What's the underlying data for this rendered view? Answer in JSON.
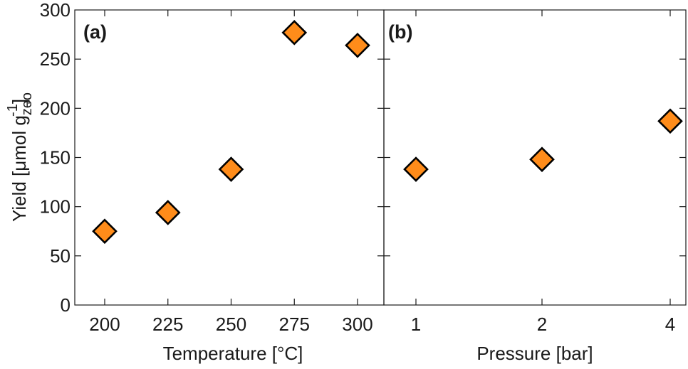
{
  "chart_data": [
    {
      "panel": "(a)",
      "type": "scatter",
      "xlabel": "Temperature [°C]",
      "ylabel_main": "Yield [μmol g",
      "ylabel_sub": "zeo",
      "ylabel_sup": "-1",
      "ylabel_end": "]",
      "x_ticks": [
        "200",
        "225",
        "250",
        "275",
        "300"
      ],
      "y_ticks": [
        "0",
        "50",
        "100",
        "150",
        "200",
        "250",
        "300"
      ],
      "ylim": [
        0,
        300
      ],
      "marker": "diamond",
      "marker_color": "#FF8C1A",
      "marker_edge": "#000000",
      "points": [
        {
          "x": 200,
          "y": 75
        },
        {
          "x": 225,
          "y": 94
        },
        {
          "x": 250,
          "y": 138
        },
        {
          "x": 275,
          "y": 277
        },
        {
          "x": 300,
          "y": 264
        }
      ]
    },
    {
      "panel": "(b)",
      "type": "scatter",
      "xlabel": "Pressure [bar]",
      "x_ticks": [
        "1",
        "2",
        "4"
      ],
      "ylim": [
        0,
        300
      ],
      "marker": "diamond",
      "marker_color": "#FF8C1A",
      "marker_edge": "#000000",
      "points": [
        {
          "x": 1,
          "y": 138
        },
        {
          "x": 2,
          "y": 148
        },
        {
          "x": 4,
          "y": 187
        }
      ]
    }
  ]
}
